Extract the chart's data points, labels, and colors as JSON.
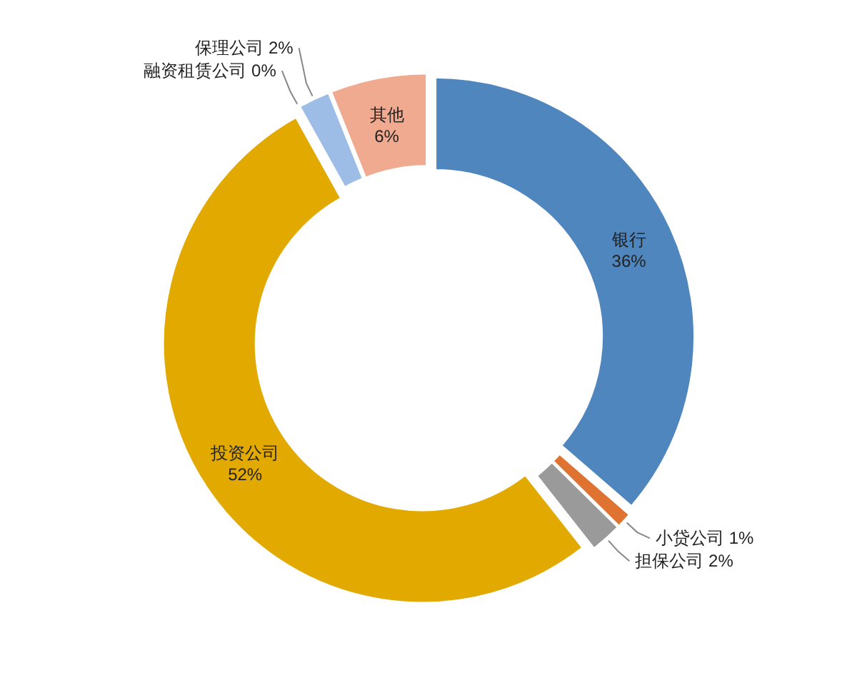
{
  "chart_data": {
    "type": "donut",
    "categories": [
      "银行",
      "小贷公司",
      "担保公司",
      "投资公司",
      "融资租赁公司",
      "保理公司",
      "其他"
    ],
    "values": [
      36,
      1,
      2,
      52,
      0,
      2,
      6
    ],
    "colors": [
      "#4f86be",
      "#df7332",
      "#9a9a9a",
      "#e2aa00",
      null,
      "#9dbde6",
      "#f0aa90"
    ],
    "value_labels": [
      "36%",
      "1%",
      "2%",
      "52%",
      "0%",
      "2%",
      "6%"
    ]
  }
}
